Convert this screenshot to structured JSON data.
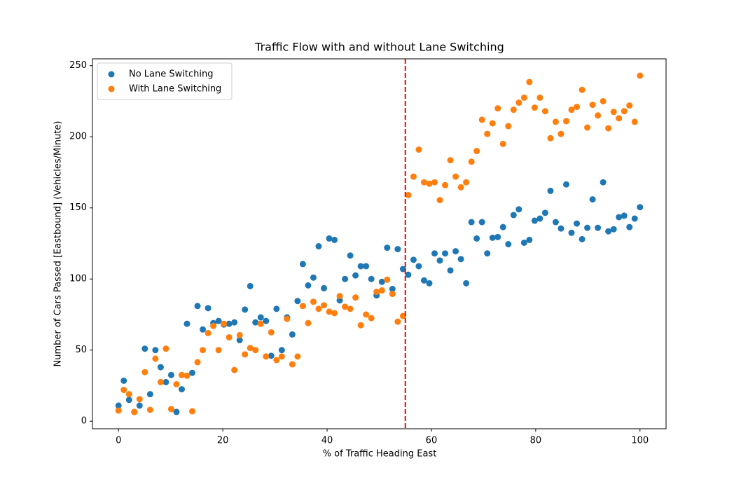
{
  "chart_data": {
    "type": "scatter",
    "title": "Traffic Flow with and without Lane Switching",
    "xlabel": "% of Traffic Heading East",
    "ylabel": "Number of Cars Passed [Eastbound] (Vehicles/Minute)",
    "x": [
      0,
      1.01,
      2.02,
      3.03,
      4.04,
      5.05,
      6.06,
      7.07,
      8.08,
      9.09,
      10.1,
      11.11,
      12.12,
      13.13,
      14.14,
      15.15,
      16.16,
      17.17,
      18.18,
      19.19,
      20.2,
      21.21,
      22.22,
      23.23,
      24.24,
      25.25,
      26.26,
      27.27,
      28.28,
      29.29,
      30.3,
      31.31,
      32.32,
      33.33,
      34.34,
      35.35,
      36.36,
      37.37,
      38.38,
      39.39,
      40.4,
      41.41,
      42.42,
      43.43,
      44.44,
      45.45,
      46.46,
      47.47,
      48.48,
      49.49,
      50.51,
      51.52,
      52.53,
      53.54,
      54.55,
      55.56,
      56.57,
      57.58,
      58.59,
      59.6,
      60.61,
      61.62,
      62.63,
      63.64,
      64.65,
      65.66,
      66.67,
      67.68,
      68.69,
      69.7,
      70.71,
      71.72,
      72.73,
      73.74,
      74.75,
      75.76,
      76.77,
      77.78,
      78.79,
      79.8,
      80.81,
      81.82,
      82.83,
      83.84,
      84.85,
      85.86,
      86.87,
      87.88,
      88.89,
      89.9,
      90.91,
      91.92,
      92.93,
      93.94,
      94.95,
      95.96,
      96.97,
      97.98,
      98.99,
      100
    ],
    "series": [
      {
        "name": "No Lane Switching",
        "color": "#1f77b4",
        "values": [
          11,
          28.5,
          15,
          6.5,
          11,
          51,
          19,
          50,
          38,
          27.5,
          32.5,
          6.5,
          22.5,
          68.5,
          34,
          81,
          64.5,
          79.5,
          69,
          70.5,
          68,
          68.5,
          69.5,
          57,
          78.5,
          95,
          69.5,
          73,
          70.5,
          46,
          79,
          50,
          73,
          61,
          84.5,
          110.5,
          95.5,
          101,
          123,
          93.5,
          128.5,
          127.5,
          85,
          100,
          116.5,
          102.5,
          109,
          109,
          100,
          88.5,
          98,
          122,
          93,
          121,
          107,
          103,
          113.5,
          109,
          99,
          97,
          118,
          113,
          118,
          106,
          119.5,
          114,
          97,
          140,
          128.5,
          140,
          118,
          129,
          129.5,
          136.5,
          124.5,
          145,
          149,
          125.5,
          127.5,
          141,
          142.5,
          146.5,
          162,
          140,
          135.5,
          166.5,
          132.5,
          139,
          128,
          136,
          156,
          136,
          168,
          133.5,
          135,
          143.5,
          144.5,
          136.5,
          142.5,
          150.5
        ]
      },
      {
        "name": "With Lane Switching",
        "color": "#ff7f0e",
        "values": [
          7.5,
          22,
          19,
          6.5,
          15.5,
          34.5,
          8,
          44,
          27.5,
          51,
          8.5,
          26,
          32.5,
          32,
          7,
          41.5,
          50,
          62,
          67,
          50,
          68.5,
          59,
          36,
          60.5,
          47,
          51.5,
          50,
          68.5,
          45.5,
          62.5,
          43,
          45.5,
          72,
          40,
          45.5,
          81,
          69,
          84,
          79,
          81.5,
          77,
          76,
          88,
          80.5,
          79,
          87,
          67.5,
          75,
          72.5,
          91,
          92,
          99.5,
          89.5,
          70,
          74,
          159,
          172,
          191,
          168,
          167,
          168,
          155.5,
          166,
          183.5,
          172,
          164.5,
          168,
          182.5,
          190,
          212,
          202,
          209.5,
          220,
          195,
          207.5,
          219,
          224,
          227.5,
          238.5,
          220.5,
          227.5,
          218,
          199,
          210.5,
          202,
          211,
          219,
          221,
          233,
          206.5,
          222.5,
          215,
          225,
          206,
          217.5,
          213,
          218,
          222,
          210.5,
          243
        ]
      }
    ],
    "vline": {
      "x": 55,
      "color": "red",
      "style": "dashed"
    },
    "xlim": [
      -5,
      105
    ],
    "xticks": [
      0,
      20,
      40,
      60,
      80,
      100
    ],
    "ylim": [
      -5.3,
      254.8
    ],
    "yticks": [
      0,
      50,
      100,
      150,
      200,
      250
    ],
    "legend": "upper left",
    "grid": false
  }
}
